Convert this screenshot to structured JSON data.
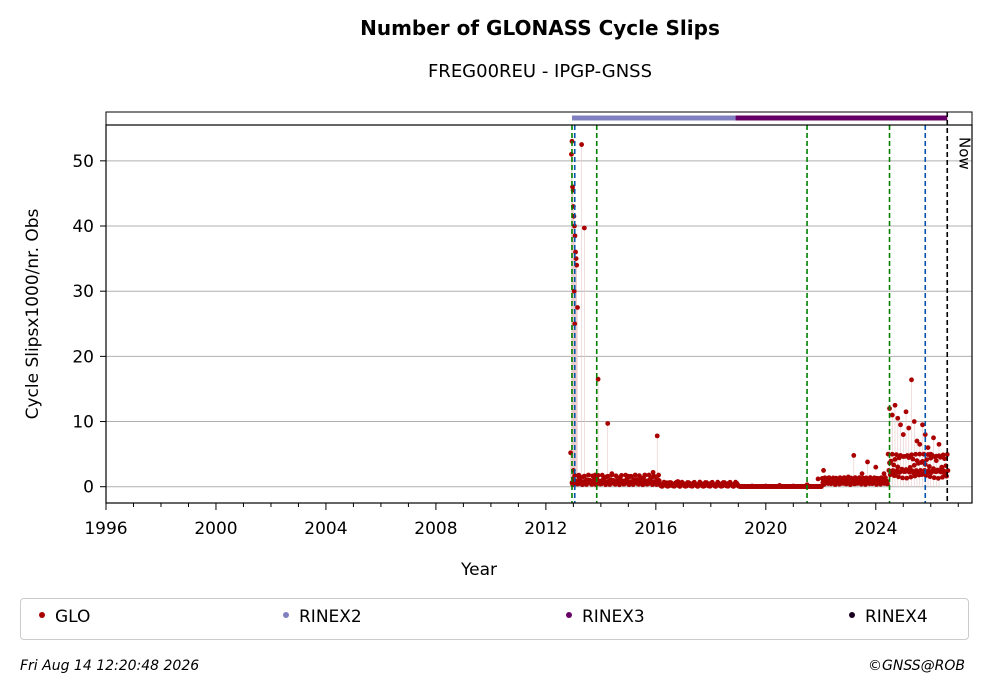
{
  "header": {
    "title": "Number of GLONASS Cycle Slips",
    "subtitle": "FREG00REU - IPGP-GNSS"
  },
  "footer": {
    "timestamp": "Fri Aug 14 12:20:48 2026",
    "credit": "©GNSS@ROB"
  },
  "colors": {
    "glo": "#aa0000",
    "rinex2": "#8080c0",
    "rinex3": "#660066",
    "rinex4": "#1a0020",
    "green_line": "#008000",
    "blue_line": "#0055aa",
    "now_line": "#000000",
    "grid": "#b0b0b0"
  },
  "chart_data": {
    "type": "scatter",
    "xlabel": "Year",
    "ylabel": "Cycle Slipsx1000/nr. Obs",
    "xlim": [
      1996,
      2027.5
    ],
    "ylim": [
      -2.5,
      55.5
    ],
    "xticks": [
      1996,
      2000,
      2004,
      2008,
      2012,
      2016,
      2020,
      2024
    ],
    "xtick_labels": [
      "1996",
      "2000",
      "2004",
      "2008",
      "2012",
      "2016",
      "2020",
      "2024"
    ],
    "yticks": [
      0,
      10,
      20,
      30,
      40,
      50
    ],
    "ytick_labels": [
      "0",
      "10",
      "20",
      "30",
      "40",
      "50"
    ],
    "grid": "horizontal",
    "now_label": "Now",
    "now_x": 2026.6,
    "green_events": [
      2012.95,
      2013.85,
      2021.5,
      2024.5
    ],
    "blue_events": [
      2013.05,
      2025.8
    ],
    "rinex_bar": [
      {
        "name": "RINEX2",
        "start": 2012.95,
        "end": 2018.9
      },
      {
        "name": "RINEX3",
        "start": 2018.9,
        "end": 2026.6
      }
    ],
    "series": [
      {
        "name": "GLO",
        "points": [
          [
            2012.9,
            5.2
          ],
          [
            2012.93,
            51.0
          ],
          [
            2012.95,
            53.0
          ],
          [
            2012.97,
            46.0
          ],
          [
            2012.99,
            45.5
          ],
          [
            2013.0,
            43.0
          ],
          [
            2013.02,
            41.5
          ],
          [
            2013.04,
            40.0
          ],
          [
            2013.06,
            38.5
          ],
          [
            2013.08,
            36.0
          ],
          [
            2013.1,
            35.0
          ],
          [
            2013.12,
            34.0
          ],
          [
            2013.03,
            30.0
          ],
          [
            2013.05,
            25.0
          ],
          [
            2013.15,
            27.5
          ],
          [
            2013.3,
            52.5
          ],
          [
            2013.4,
            39.7
          ],
          [
            2013.9,
            16.5
          ],
          [
            2014.25,
            9.7
          ],
          [
            2016.05,
            7.8
          ],
          [
            2013.0,
            2.5
          ],
          [
            2013.2,
            1.5
          ],
          [
            2013.5,
            1.0
          ],
          [
            2013.8,
            1.8
          ],
          [
            2014.1,
            1.2
          ],
          [
            2014.4,
            2.0
          ],
          [
            2014.7,
            1.4
          ],
          [
            2015.0,
            1.6
          ],
          [
            2015.3,
            1.1
          ],
          [
            2015.6,
            1.8
          ],
          [
            2015.9,
            2.2
          ],
          [
            2016.1,
            1.0
          ],
          [
            2016.4,
            0.6
          ],
          [
            2016.8,
            0.8
          ],
          [
            2017.2,
            0.5
          ],
          [
            2017.6,
            0.7
          ],
          [
            2018.0,
            0.4
          ],
          [
            2018.5,
            0.6
          ],
          [
            2019.0,
            0.2
          ],
          [
            2019.5,
            0.1
          ],
          [
            2020.0,
            0.1
          ],
          [
            2020.5,
            0.2
          ],
          [
            2021.0,
            0.1
          ],
          [
            2021.5,
            0.3
          ],
          [
            2021.9,
            1.2
          ],
          [
            2022.1,
            2.5
          ],
          [
            2022.6,
            0.8
          ],
          [
            2023.0,
            1.5
          ],
          [
            2023.2,
            4.8
          ],
          [
            2023.5,
            2.0
          ],
          [
            2023.7,
            3.8
          ],
          [
            2024.0,
            3.0
          ],
          [
            2024.3,
            2.0
          ],
          [
            2024.5,
            12.0
          ],
          [
            2024.6,
            11.0
          ],
          [
            2024.7,
            12.5
          ],
          [
            2024.8,
            10.5
          ],
          [
            2024.9,
            9.5
          ],
          [
            2025.0,
            8.0
          ],
          [
            2025.1,
            11.5
          ],
          [
            2025.2,
            9.0
          ],
          [
            2025.3,
            16.4
          ],
          [
            2025.4,
            10.0
          ],
          [
            2025.5,
            7.0
          ],
          [
            2025.6,
            6.5
          ],
          [
            2025.7,
            9.5
          ],
          [
            2025.8,
            8.0
          ],
          [
            2025.9,
            6.0
          ],
          [
            2026.0,
            5.0
          ],
          [
            2026.1,
            7.5
          ],
          [
            2026.2,
            4.0
          ],
          [
            2026.3,
            6.5
          ],
          [
            2026.4,
            3.0
          ],
          [
            2026.5,
            2.0
          ]
        ]
      }
    ],
    "legend": [
      {
        "label": "GLO",
        "color": "#aa0000"
      },
      {
        "label": "RINEX2",
        "color": "#8080c0"
      },
      {
        "label": "RINEX3",
        "color": "#660066"
      },
      {
        "label": "RINEX4",
        "color": "#1a0020"
      }
    ]
  }
}
